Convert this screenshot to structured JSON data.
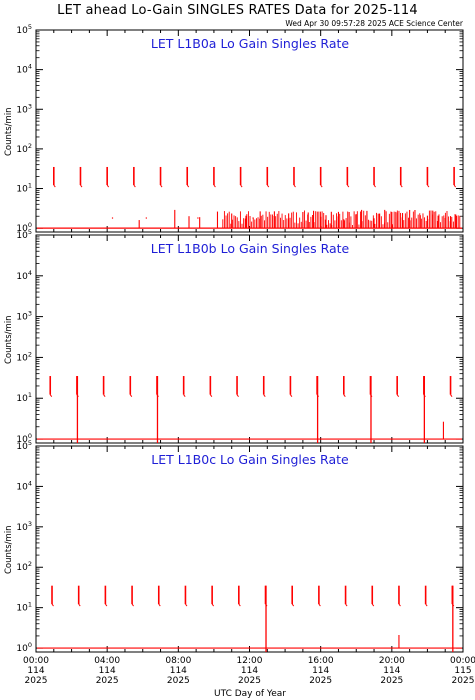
{
  "title": "LET ahead Lo-Gain SINGLES RATES Data for 2025-114",
  "timestamp": "Wed Apr 30 09:57:28 2025 ACE Science Center",
  "colors": {
    "data": "#ff0000",
    "panel_title": "#1f1fd6",
    "axes": "#000000"
  },
  "chart_data": [
    {
      "type": "line",
      "title": "LET L1B0a Lo Gain Singles Rate",
      "ylabel": "Counts/min",
      "yscale": "log",
      "ylim": [
        0.8,
        100000
      ],
      "y_ticks": [
        "10^0",
        "10^1",
        "10^2",
        "10^3",
        "10^4",
        "10^5"
      ],
      "xlim": [
        0,
        24
      ],
      "spikes_hours": [
        1.0,
        2.5,
        4.0,
        5.5,
        7.0,
        8.5,
        10.0,
        11.5,
        13.0,
        14.5,
        16.0,
        17.5,
        19.0,
        20.5,
        22.0,
        23.5
      ],
      "spike_peak": 35,
      "baseline_bursts_hours": [
        5.8,
        7.8,
        8.6,
        9.2,
        10.2,
        11.0,
        11.8,
        12.6,
        13.4,
        14.2,
        15.0,
        15.3,
        15.6,
        16.0,
        16.3,
        16.6,
        17.0,
        17.3,
        17.6,
        18.0,
        18.3,
        18.6,
        19.0,
        19.3,
        19.6,
        20.0,
        20.3,
        20.6,
        21.0,
        21.3,
        21.6,
        22.0,
        22.3,
        22.6,
        23.0,
        23.3,
        23.6
      ],
      "drops_hours": []
    },
    {
      "type": "line",
      "title": "LET L1B0b Lo Gain Singles Rate",
      "ylabel": "Counts/min",
      "yscale": "log",
      "ylim": [
        0.8,
        100000
      ],
      "y_ticks": [
        "10^0",
        "10^1",
        "10^2",
        "10^3",
        "10^4",
        "10^5"
      ],
      "xlim": [
        0,
        24
      ],
      "spikes_hours": [
        0.8,
        2.3,
        3.8,
        5.3,
        6.8,
        8.3,
        9.8,
        11.3,
        12.8,
        14.3,
        15.8,
        17.3,
        18.8,
        20.3,
        21.8,
        23.3
      ],
      "spike_peak": 35,
      "baseline_bursts_hours": [
        22.9
      ],
      "drops_hours": [
        2.3,
        6.8,
        15.8,
        18.8,
        21.8
      ]
    },
    {
      "type": "line",
      "title": "LET L1B0c Lo Gain Singles Rate",
      "ylabel": "Counts/min",
      "yscale": "log",
      "ylim": [
        0.8,
        100000
      ],
      "y_ticks": [
        "10^0",
        "10^1",
        "10^2",
        "10^3",
        "10^4",
        "10^5"
      ],
      "xlim": [
        0,
        24
      ],
      "spikes_hours": [
        0.9,
        2.4,
        3.9,
        5.4,
        6.9,
        8.4,
        9.9,
        11.4,
        12.9,
        14.4,
        15.9,
        17.4,
        18.9,
        20.4,
        21.9,
        23.4
      ],
      "spike_peak": 35,
      "baseline_bursts_hours": [
        20.4
      ],
      "drops_hours": [
        12.9,
        23.4
      ]
    }
  ],
  "x_axis": {
    "label": "UTC Day of Year",
    "ticks": [
      {
        "time": "00:00",
        "doy": "114",
        "year": "2025"
      },
      {
        "time": "04:00",
        "doy": "114",
        "year": "2025"
      },
      {
        "time": "08:00",
        "doy": "114",
        "year": "2025"
      },
      {
        "time": "12:00",
        "doy": "114",
        "year": "2025"
      },
      {
        "time": "16:00",
        "doy": "114",
        "year": "2025"
      },
      {
        "time": "20:00",
        "doy": "114",
        "year": "2025"
      },
      {
        "time": "00:00",
        "doy": "115",
        "year": "2025"
      }
    ]
  }
}
